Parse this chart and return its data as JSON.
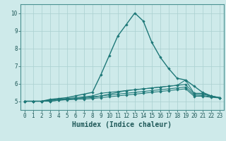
{
  "xlabel": "Humidex (Indice chaleur)",
  "xlim": [
    -0.5,
    23.5
  ],
  "ylim": [
    4.5,
    10.5
  ],
  "x_ticks": [
    0,
    1,
    2,
    3,
    4,
    5,
    6,
    7,
    8,
    9,
    10,
    11,
    12,
    13,
    14,
    15,
    16,
    17,
    18,
    19,
    20,
    21,
    22,
    23
  ],
  "y_ticks": [
    5,
    6,
    7,
    8,
    9,
    10
  ],
  "background_color": "#ceeaea",
  "grid_color": "#aad0d0",
  "line_color": "#1e7878",
  "lines": [
    [
      5.0,
      5.0,
      5.0,
      5.0,
      5.05,
      5.1,
      5.15,
      5.2,
      5.25,
      5.3,
      5.4,
      5.5,
      5.6,
      5.65,
      5.7,
      5.75,
      5.8,
      5.85,
      5.9,
      6.2,
      5.45,
      5.45,
      5.3,
      5.2
    ],
    [
      5.0,
      5.0,
      5.0,
      5.1,
      5.15,
      5.2,
      5.3,
      5.4,
      5.5,
      6.5,
      7.6,
      8.7,
      9.35,
      10.0,
      9.55,
      8.35,
      7.5,
      6.85,
      6.3,
      6.2,
      5.85,
      5.5,
      5.3,
      5.2
    ],
    [
      5.0,
      5.0,
      5.0,
      5.05,
      5.1,
      5.15,
      5.2,
      5.25,
      5.3,
      5.45,
      5.5,
      5.55,
      5.6,
      5.65,
      5.7,
      5.75,
      5.8,
      5.85,
      5.9,
      5.95,
      5.42,
      5.4,
      5.28,
      5.2
    ],
    [
      5.0,
      5.0,
      5.0,
      5.05,
      5.1,
      5.12,
      5.15,
      5.18,
      5.2,
      5.3,
      5.35,
      5.4,
      5.45,
      5.5,
      5.55,
      5.6,
      5.65,
      5.7,
      5.75,
      5.8,
      5.35,
      5.32,
      5.25,
      5.2
    ],
    [
      5.0,
      5.0,
      5.0,
      5.0,
      5.05,
      5.08,
      5.1,
      5.12,
      5.15,
      5.2,
      5.25,
      5.3,
      5.35,
      5.4,
      5.45,
      5.5,
      5.55,
      5.6,
      5.65,
      5.7,
      5.28,
      5.28,
      5.22,
      5.18
    ]
  ],
  "tick_fontsize": 5.5,
  "xlabel_fontsize": 7,
  "tick_color": "#1e5858",
  "spine_color": "#4a9090"
}
